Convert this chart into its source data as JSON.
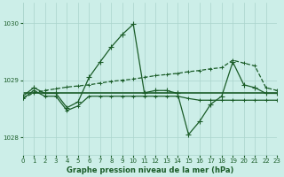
{
  "title": "Graphe pression niveau de la mer (hPa)",
  "bg_color": "#cceee8",
  "grid_color": "#aad4cc",
  "line_color": "#1a5c28",
  "xlim": [
    0,
    23
  ],
  "ylim": [
    1027.7,
    1030.35
  ],
  "yticks": [
    1028,
    1029,
    1030
  ],
  "xticks": [
    0,
    1,
    2,
    3,
    4,
    5,
    6,
    7,
    8,
    9,
    10,
    11,
    12,
    13,
    14,
    15,
    16,
    17,
    18,
    19,
    20,
    21,
    22,
    23
  ],
  "s1_x": [
    0,
    1,
    2,
    3,
    4,
    5,
    6,
    7,
    8,
    9,
    10,
    11,
    12,
    13,
    14,
    15,
    16,
    17,
    18,
    19,
    20,
    21,
    22,
    23
  ],
  "s1_y": [
    1028.72,
    1028.87,
    1028.77,
    1028.77,
    1028.52,
    1028.62,
    1029.05,
    1029.32,
    1029.58,
    1029.8,
    1029.98,
    1028.78,
    1028.82,
    1028.82,
    1028.77,
    1028.05,
    1028.28,
    1028.58,
    1028.72,
    1029.32,
    1028.92,
    1028.87,
    1028.77,
    1028.77
  ],
  "s2_x": [
    0,
    1,
    2,
    3,
    4,
    5,
    6,
    7,
    8,
    9,
    10,
    11,
    12,
    13,
    14,
    15,
    16,
    17,
    18,
    19,
    20,
    21,
    22,
    23
  ],
  "s2_y": [
    1028.77,
    1028.77,
    1028.77,
    1028.77,
    1028.77,
    1028.77,
    1028.77,
    1028.77,
    1028.77,
    1028.77,
    1028.77,
    1028.77,
    1028.77,
    1028.77,
    1028.77,
    1028.77,
    1028.77,
    1028.77,
    1028.77,
    1028.77,
    1028.77,
    1028.77,
    1028.77,
    1028.77
  ],
  "s3_x": [
    0,
    1,
    2,
    3,
    4,
    5,
    6,
    7,
    8,
    9,
    10,
    11,
    12,
    13,
    14,
    15,
    16,
    17,
    18,
    19,
    20,
    21,
    22,
    23
  ],
  "s3_y": [
    1028.68,
    1028.78,
    1028.82,
    1028.85,
    1028.88,
    1028.9,
    1028.92,
    1028.95,
    1028.98,
    1029.0,
    1029.02,
    1029.05,
    1029.08,
    1029.1,
    1029.12,
    1029.15,
    1029.17,
    1029.2,
    1029.22,
    1029.35,
    1029.3,
    1029.25,
    1028.87,
    1028.82
  ],
  "s4_x": [
    0,
    1,
    2,
    3,
    4,
    5,
    6,
    7,
    8,
    9,
    10,
    11,
    12,
    13,
    14,
    15,
    16,
    17,
    18,
    19,
    20,
    21,
    22,
    23
  ],
  "s4_y": [
    1028.68,
    1028.82,
    1028.72,
    1028.72,
    1028.47,
    1028.55,
    1028.72,
    1028.72,
    1028.72,
    1028.72,
    1028.72,
    1028.72,
    1028.72,
    1028.72,
    1028.72,
    1028.68,
    1028.65,
    1028.65,
    1028.65,
    1028.65,
    1028.65,
    1028.65,
    1028.65,
    1028.65
  ]
}
